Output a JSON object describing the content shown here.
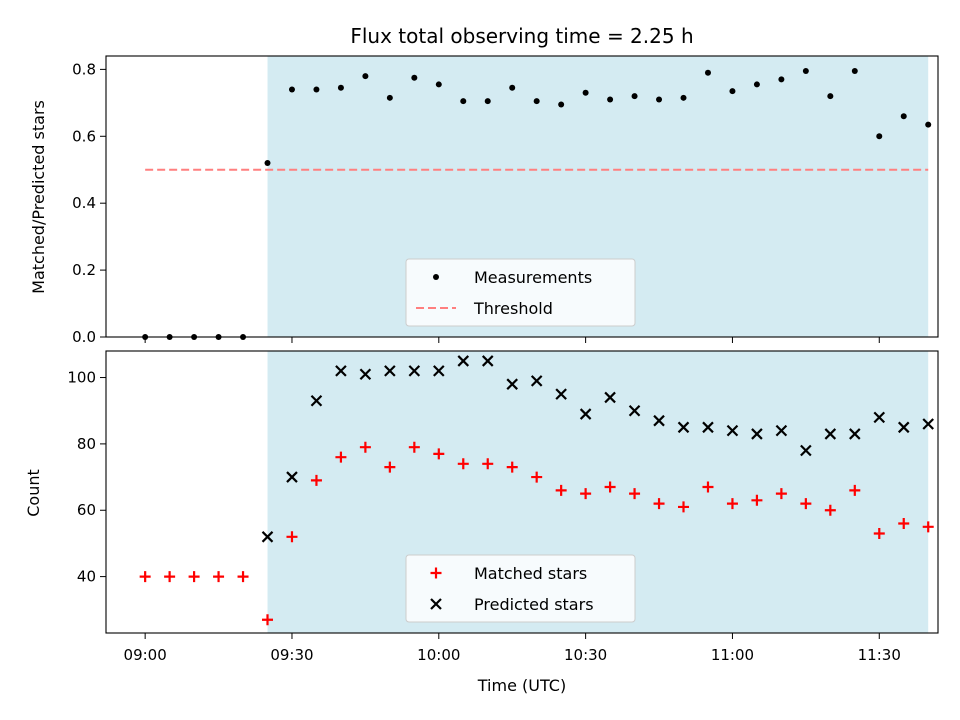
{
  "chart_data": {
    "type": "scatter",
    "title": "Flux total observing time = 2.25 h",
    "xlabel": "Time (UTC)",
    "x_ticks": [
      "09:00",
      "09:30",
      "10:00",
      "10:30",
      "11:00",
      "11:30"
    ],
    "x_domain": [
      "08:52",
      "11:42"
    ],
    "observing_window": [
      "09:25",
      "11:40"
    ],
    "colors": {
      "shade": "#add8e6",
      "measurements": "#000000",
      "threshold": "#ff7f7f",
      "matched": "#ff0000",
      "predicted": "#000000"
    },
    "panels": [
      {
        "ylabel": "Matched/Predicted stars",
        "ylim": [
          0,
          0.84
        ],
        "y_ticks": [
          "0.0",
          "0.2",
          "0.4",
          "0.6",
          "0.8"
        ],
        "legend_loc": "lower-center",
        "threshold": {
          "name": "Threshold",
          "value": 0.5,
          "x_range": [
            "09:00",
            "11:40"
          ]
        },
        "series": [
          {
            "name": "Measurements",
            "marker": "dot",
            "x": [
              "09:00",
              "09:05",
              "09:10",
              "09:15",
              "09:20",
              "09:25",
              "09:30",
              "09:35",
              "09:40",
              "09:45",
              "09:50",
              "09:55",
              "10:00",
              "10:05",
              "10:10",
              "10:15",
              "10:20",
              "10:25",
              "10:30",
              "10:35",
              "10:40",
              "10:45",
              "10:50",
              "10:55",
              "11:00",
              "11:05",
              "11:10",
              "11:15",
              "11:20",
              "11:25",
              "11:30",
              "11:35",
              "11:40"
            ],
            "y": [
              0,
              0,
              0,
              0,
              0,
              0.52,
              0.74,
              0.74,
              0.745,
              0.78,
              0.715,
              0.775,
              0.755,
              0.705,
              0.705,
              0.745,
              0.705,
              0.695,
              0.73,
              0.71,
              0.72,
              0.71,
              0.715,
              0.79,
              0.735,
              0.755,
              0.77,
              0.795,
              0.72,
              0.795,
              0.6,
              0.66,
              0.635
            ]
          }
        ]
      },
      {
        "ylabel": "Count",
        "ylim": [
          23,
          108
        ],
        "y_ticks": [
          "40",
          "60",
          "80",
          "100"
        ],
        "legend_loc": "lower-center",
        "series": [
          {
            "name": "Matched stars",
            "marker": "plus",
            "x": [
              "09:00",
              "09:05",
              "09:10",
              "09:15",
              "09:20",
              "09:25",
              "09:30",
              "09:35",
              "09:40",
              "09:45",
              "09:50",
              "09:55",
              "10:00",
              "10:05",
              "10:10",
              "10:15",
              "10:20",
              "10:25",
              "10:30",
              "10:35",
              "10:40",
              "10:45",
              "10:50",
              "10:55",
              "11:00",
              "11:05",
              "11:10",
              "11:15",
              "11:20",
              "11:25",
              "11:30",
              "11:35",
              "11:40"
            ],
            "y": [
              40,
              40,
              40,
              40,
              40,
              27,
              52,
              69,
              76,
              79,
              73,
              79,
              77,
              74,
              74,
              73,
              70,
              66,
              65,
              67,
              65,
              62,
              61,
              67,
              62,
              63,
              65,
              62,
              60,
              66,
              53,
              56,
              55
            ]
          },
          {
            "name": "Predicted stars",
            "marker": "x",
            "x": [
              "09:25",
              "09:30",
              "09:35",
              "09:40",
              "09:45",
              "09:50",
              "09:55",
              "10:00",
              "10:05",
              "10:10",
              "10:15",
              "10:20",
              "10:25",
              "10:30",
              "10:35",
              "10:40",
              "10:45",
              "10:50",
              "10:55",
              "11:00",
              "11:05",
              "11:10",
              "11:15",
              "11:20",
              "11:25",
              "11:30",
              "11:35",
              "11:40"
            ],
            "y": [
              52,
              70,
              93,
              102,
              101,
              102,
              102,
              102,
              105,
              105,
              98,
              99,
              95,
              89,
              94,
              90,
              87,
              85,
              85,
              84,
              83,
              84,
              78,
              83,
              83,
              88,
              85,
              86
            ]
          }
        ]
      }
    ]
  }
}
